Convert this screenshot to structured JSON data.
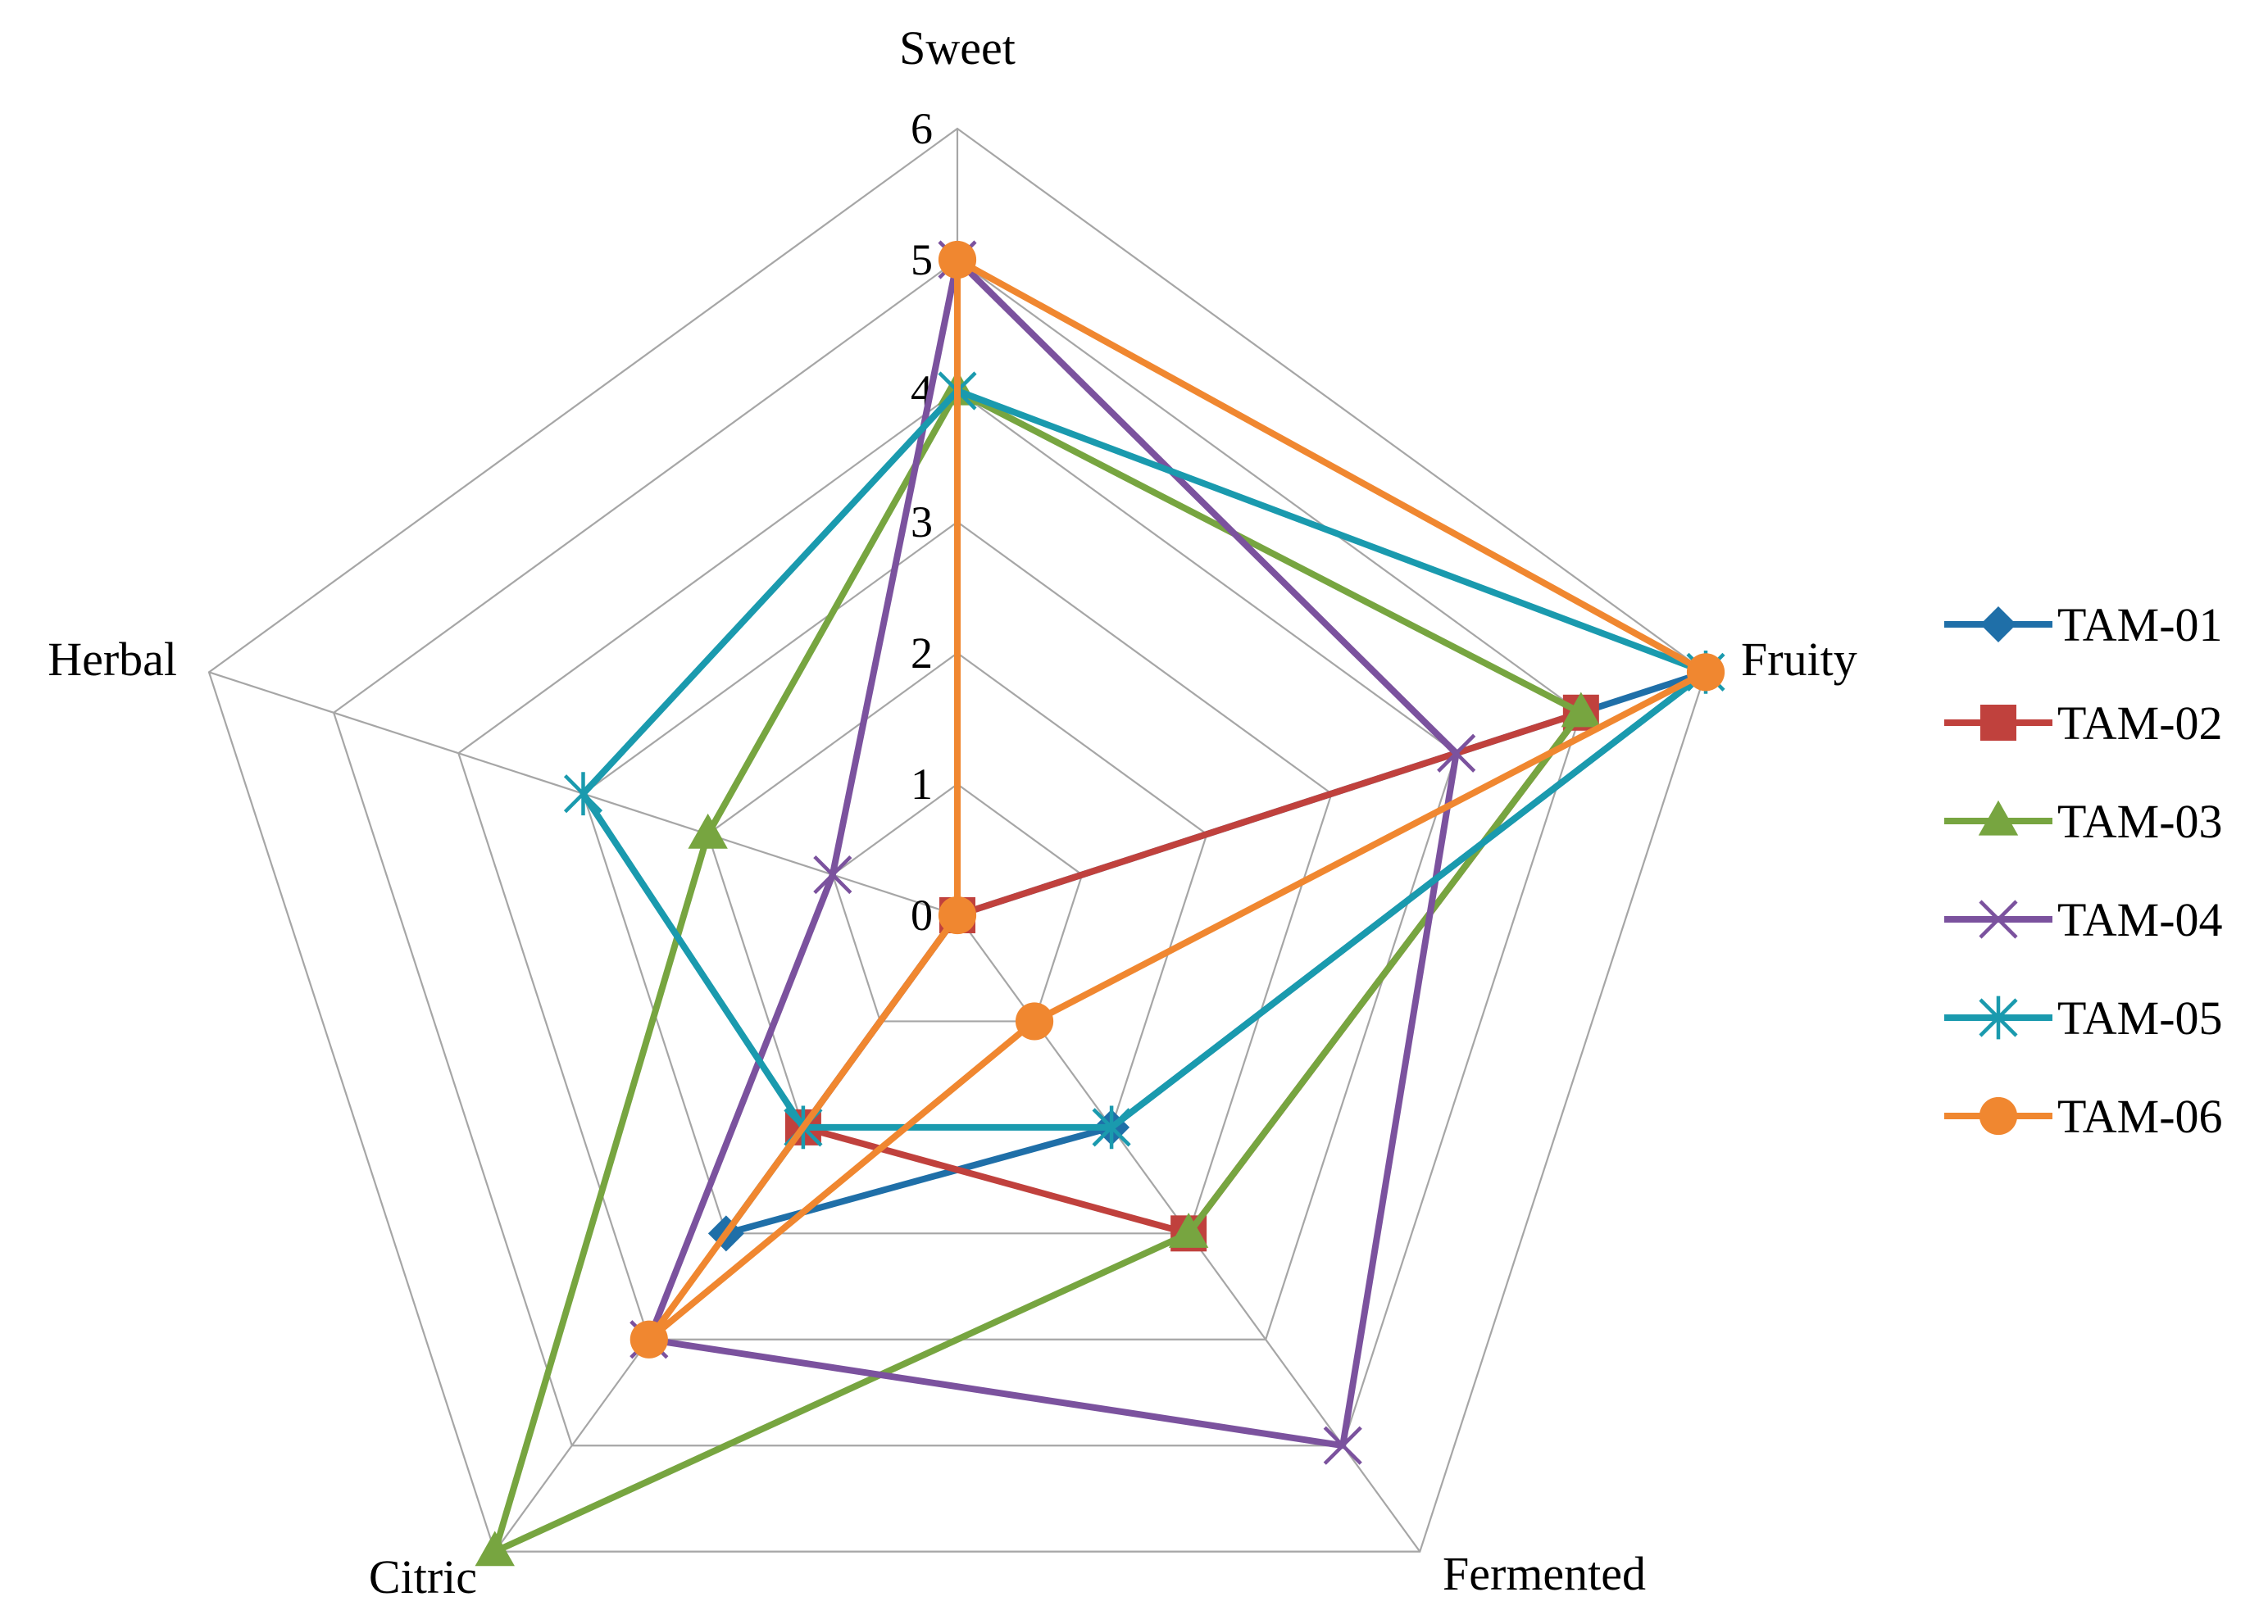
{
  "chart_data": {
    "type": "radar",
    "title": "",
    "axes": [
      "Sweet",
      "Fruity",
      "Fermented",
      "Citric",
      "Herbal"
    ],
    "range": [
      0,
      6
    ],
    "ticks": [
      "0",
      "1",
      "2",
      "3",
      "4",
      "5",
      "6"
    ],
    "grid": true,
    "legend_position": "right",
    "series": [
      {
        "name": "TAM-01",
        "color": "#1f6fa8",
        "marker": "diamond",
        "values": [
          0,
          6,
          2,
          3,
          0
        ]
      },
      {
        "name": "TAM-02",
        "color": "#c0413d",
        "marker": "square",
        "values": [
          0,
          5,
          3,
          2,
          0
        ]
      },
      {
        "name": "TAM-03",
        "color": "#77a540",
        "marker": "triangle",
        "values": [
          4,
          5,
          3,
          6,
          2
        ]
      },
      {
        "name": "TAM-04",
        "color": "#7b529e",
        "marker": "x",
        "values": [
          5,
          4,
          5,
          4,
          1
        ]
      },
      {
        "name": "TAM-05",
        "color": "#1a9aae",
        "marker": "star",
        "values": [
          4,
          6,
          2,
          2,
          3
        ]
      },
      {
        "name": "TAM-06",
        "color": "#f08730",
        "marker": "circle",
        "values": [
          5,
          6,
          1,
          4,
          0
        ]
      }
    ]
  }
}
